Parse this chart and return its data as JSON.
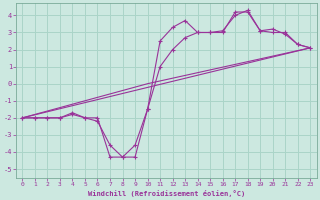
{
  "background_color": "#cce8e0",
  "grid_color": "#aad4c8",
  "line_color": "#993399",
  "xlabel": "Windchill (Refroidissement éolien,°C)",
  "xlim": [
    -0.5,
    23.5
  ],
  "ylim": [
    -5.5,
    4.7
  ],
  "yticks": [
    -5,
    -4,
    -3,
    -2,
    -1,
    0,
    1,
    2,
    3,
    4
  ],
  "xticks": [
    0,
    1,
    2,
    3,
    4,
    5,
    6,
    7,
    8,
    9,
    10,
    11,
    12,
    13,
    14,
    15,
    16,
    17,
    18,
    19,
    20,
    21,
    22,
    23
  ],
  "line1_x": [
    0,
    1,
    2,
    3,
    4,
    5,
    6,
    7,
    8,
    9,
    10,
    11,
    12,
    13,
    14,
    15,
    16,
    17,
    18,
    19,
    20,
    21,
    22,
    23
  ],
  "line1_y": [
    -2.0,
    -2.0,
    -2.0,
    -2.0,
    -1.8,
    -2.0,
    -2.2,
    -3.6,
    -4.3,
    -3.6,
    -1.5,
    2.5,
    3.3,
    3.7,
    3.0,
    3.0,
    3.1,
    4.0,
    4.3,
    3.1,
    3.2,
    2.9,
    2.3,
    2.1
  ],
  "line2_x": [
    0,
    1,
    2,
    3,
    4,
    5,
    6,
    7,
    8,
    9,
    10,
    11,
    12,
    13,
    14,
    15,
    16,
    17,
    18,
    19,
    20,
    21,
    22,
    23
  ],
  "line2_y": [
    -2.0,
    -2.0,
    -2.0,
    -2.0,
    -1.7,
    -2.0,
    -2.0,
    -4.3,
    -4.3,
    -4.3,
    -1.5,
    1.0,
    2.0,
    2.7,
    3.0,
    3.0,
    3.0,
    4.2,
    4.2,
    3.1,
    3.0,
    3.0,
    2.3,
    2.1
  ],
  "line3_x": [
    0,
    10,
    23
  ],
  "line3_y": [
    -2.0,
    0.0,
    2.1
  ],
  "line4_x": [
    0,
    23
  ],
  "line4_y": [
    -2.0,
    2.1
  ]
}
